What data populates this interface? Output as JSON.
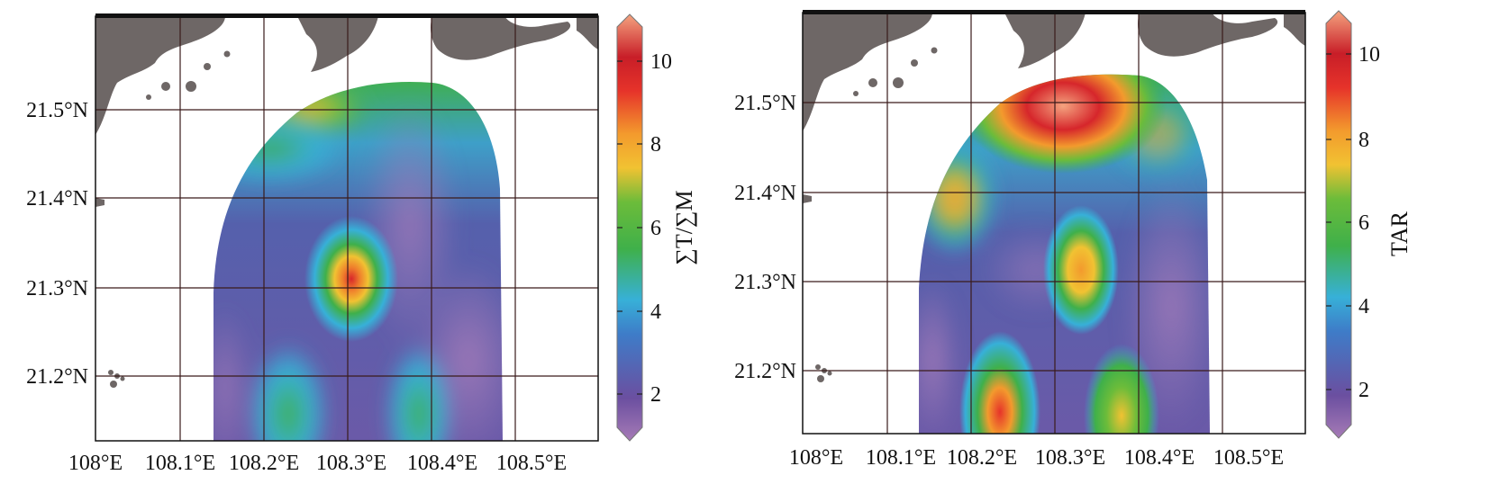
{
  "figure": {
    "panels": [
      {
        "id": "left",
        "variable_label": "∑T/∑M",
        "lat_labels": [
          "21.5°N",
          "21.4°N",
          "21.3°N",
          "21.2°N"
        ],
        "lon_labels": [
          "108°E",
          "108.1°E",
          "108.2°E",
          "108.3°E",
          "108.4°E",
          "108.5°E"
        ],
        "colorbar_ticks": [
          "10",
          "8",
          "6",
          "4",
          "2"
        ]
      },
      {
        "id": "right",
        "variable_label": "TAR",
        "lat_labels": [
          "21.5°N",
          "21.4°N",
          "21.3°N",
          "21.2°N"
        ],
        "lon_labels": [
          "108°E",
          "108.1°E",
          "108.2°E",
          "108.3°E",
          "108.4°E",
          "108.5°E"
        ],
        "colorbar_ticks": [
          "10",
          "8",
          "6",
          "4",
          "2"
        ]
      }
    ],
    "colors": {
      "land": "#6e6766",
      "grid": "#3a1b1b",
      "colormap": [
        "#a67bb6",
        "#6b4fa0",
        "#3e7cc8",
        "#37b0d8",
        "#3fb04a",
        "#6cbc3a",
        "#f1c232",
        "#f39a2d",
        "#e6332a",
        "#c81e28",
        "#f4a37f"
      ]
    }
  }
}
